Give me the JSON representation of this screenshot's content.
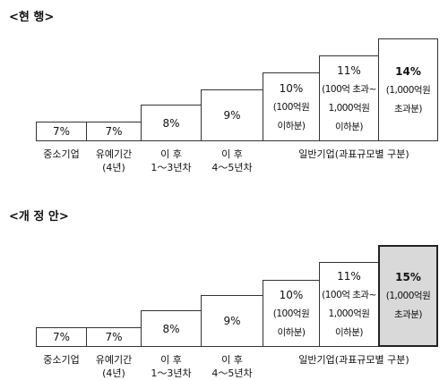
{
  "current": {
    "title": "<현 행>",
    "boxes": [
      {
        "rate": "7%",
        "note": []
      },
      {
        "rate": "7%",
        "note": []
      },
      {
        "rate": "8%",
        "note": []
      },
      {
        "rate": "9%",
        "note": []
      },
      {
        "rate": "10%",
        "note": [
          "(100억원",
          "이하분)"
        ]
      },
      {
        "rate": "11%",
        "note": [
          "(100억 초과~",
          "1,000억원",
          "이하분)"
        ]
      },
      {
        "rate": "14%",
        "note": [
          "(1,000억원",
          "초과분)"
        ]
      }
    ]
  },
  "proposed": {
    "title": "<개 정 안>",
    "boxes": [
      {
        "rate": "7%",
        "note": []
      },
      {
        "rate": "7%",
        "note": []
      },
      {
        "rate": "8%",
        "note": []
      },
      {
        "rate": "9%",
        "note": []
      },
      {
        "rate": "10%",
        "note": [
          "(100억원",
          "이하분)"
        ]
      },
      {
        "rate": "11%",
        "note": [
          "(100억 초과~",
          "1,000억원",
          "이하분)"
        ]
      },
      {
        "rate": "15%",
        "note": [
          "(1,000억원",
          "초과분)"
        ]
      }
    ]
  },
  "labels": {
    "sme": "중소기업",
    "grace": [
      "유예기간",
      "(4년)"
    ],
    "after1": [
      "이 후",
      "1～3년차"
    ],
    "after2": [
      "이 후",
      "4～5년차"
    ],
    "general": "일반기업(과표규모별 구분)"
  }
}
